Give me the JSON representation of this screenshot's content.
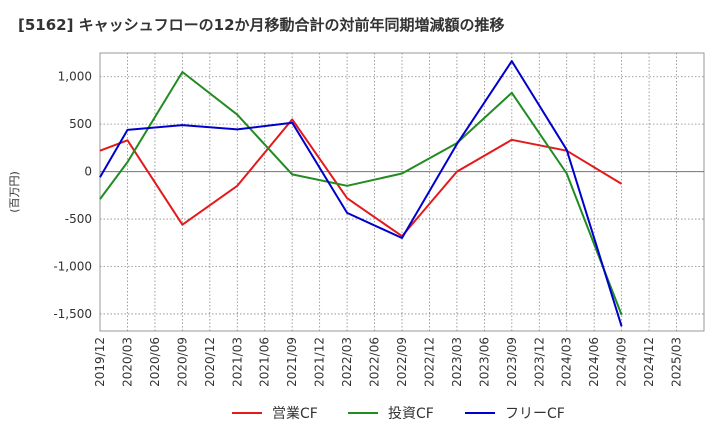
{
  "chart_data": {
    "type": "line",
    "title": "[5162]  キャッシュフローの12か月移動合計の対前年同期増減額の推移",
    "ylabel": "(百万円)",
    "xlabel": "",
    "x": [
      "2019/12",
      "2020/03",
      "2020/06",
      "2020/09",
      "2020/12",
      "2021/03",
      "2021/06",
      "2021/09",
      "2021/12",
      "2022/03",
      "2022/06",
      "2022/09",
      "2022/12",
      "2023/03",
      "2023/06",
      "2023/09",
      "2023/12",
      "2024/03",
      "2024/06",
      "2024/09",
      "2024/12",
      "2025/03"
    ],
    "yticks": [
      1000,
      500,
      0,
      -500,
      -1000,
      -1500
    ],
    "ytick_labels": [
      "1,000",
      "500",
      "0",
      "-500",
      "-1,000",
      "-1,500"
    ],
    "ylim": [
      -1680,
      1250
    ],
    "grid": true,
    "legend_position": "bottom",
    "series": [
      {
        "name": "営業CF",
        "color": "#e31a1c",
        "values": [
          220,
          330,
          null,
          -560,
          null,
          -150,
          null,
          550,
          null,
          -280,
          null,
          -680,
          null,
          0,
          null,
          335,
          null,
          220,
          null,
          -130,
          null,
          null
        ]
      },
      {
        "name": "投資CF",
        "color": "#228b22",
        "values": [
          -290,
          100,
          null,
          1050,
          null,
          600,
          null,
          -30,
          null,
          -150,
          null,
          -20,
          null,
          300,
          null,
          830,
          null,
          -20,
          null,
          -1510,
          null,
          null
        ]
      },
      {
        "name": "フリーCF",
        "color": "#0000cc",
        "values": [
          -60,
          440,
          null,
          490,
          null,
          445,
          null,
          515,
          null,
          -435,
          null,
          -700,
          null,
          290,
          null,
          1165,
          null,
          230,
          null,
          -1630,
          null,
          null
        ]
      }
    ]
  }
}
